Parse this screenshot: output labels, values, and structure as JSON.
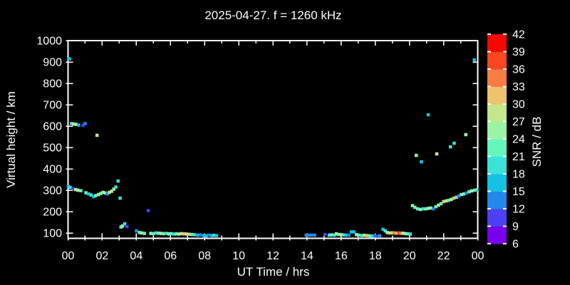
{
  "title": "2025-04-27. f = 1260 kHz",
  "colors": {
    "background": "#000000",
    "text": "#ffffff",
    "axis": "#ffffff"
  },
  "chart_data": {
    "type": "scatter",
    "title": "2025-04-27. f = 1260 kHz",
    "xlabel": "UT Time / hrs",
    "ylabel": "Virtual height / km",
    "colorbar_label": "SNR / dB",
    "x_tick_labels": [
      "00",
      "02",
      "04",
      "06",
      "08",
      "10",
      "12",
      "14",
      "16",
      "18",
      "20",
      "22",
      "00"
    ],
    "x_major_step_hours": 2,
    "x_minor_step_hours": 1,
    "x_range_hours": [
      0,
      24
    ],
    "y_ticks_km": [
      100,
      200,
      300,
      400,
      500,
      600,
      700,
      800,
      900,
      1000
    ],
    "y_range_km": [
      75,
      1000
    ],
    "grid": false,
    "snr_tick_labels": [
      6,
      9,
      12,
      15,
      18,
      21,
      24,
      27,
      30,
      33,
      36,
      39,
      42
    ],
    "snr_colors_low_to_high": [
      "#7900EF",
      "#4B41F2",
      "#2387EC",
      "#15C1E5",
      "#3BE2D7",
      "#64F6BE",
      "#9BF4A6",
      "#C3E78A",
      "#EFC26D",
      "#FA7D44",
      "#FA4621",
      "#F50800"
    ],
    "points_t_h_snr": [
      [
        0.08,
        915,
        16
      ],
      [
        0.2,
        612,
        19
      ],
      [
        0.33,
        610,
        28
      ],
      [
        0.47,
        608,
        25
      ],
      [
        0.62,
        605,
        16
      ],
      [
        0.88,
        603,
        10
      ],
      [
        1.0,
        612,
        13
      ],
      [
        1.7,
        557,
        28
      ],
      [
        0.02,
        318,
        16
      ],
      [
        0.12,
        313,
        19
      ],
      [
        0.3,
        307,
        10
      ],
      [
        0.45,
        303,
        28
      ],
      [
        0.58,
        300,
        25
      ],
      [
        0.75,
        298,
        22
      ],
      [
        1.05,
        288,
        22
      ],
      [
        1.2,
        283,
        16
      ],
      [
        1.35,
        278,
        19
      ],
      [
        1.5,
        270,
        16
      ],
      [
        1.62,
        275,
        22
      ],
      [
        1.78,
        280,
        25
      ],
      [
        1.92,
        285,
        22
      ],
      [
        2.05,
        290,
        28
      ],
      [
        2.18,
        287,
        25
      ],
      [
        2.3,
        283,
        13
      ],
      [
        2.42,
        290,
        28
      ],
      [
        2.55,
        295,
        28
      ],
      [
        2.68,
        305,
        25
      ],
      [
        2.8,
        315,
        19
      ],
      [
        2.93,
        343,
        19
      ],
      [
        3.05,
        263,
        19
      ],
      [
        3.1,
        128,
        22
      ],
      [
        3.2,
        133,
        25
      ],
      [
        3.32,
        143,
        19
      ],
      [
        3.45,
        130,
        10
      ],
      [
        4.0,
        110,
        13
      ],
      [
        4.18,
        102,
        22
      ],
      [
        4.32,
        100,
        25
      ],
      [
        4.48,
        98,
        22
      ],
      [
        4.7,
        205,
        10
      ],
      [
        4.85,
        98,
        25
      ],
      [
        5.0,
        97,
        22
      ],
      [
        5.15,
        100,
        19
      ],
      [
        5.3,
        99,
        22
      ],
      [
        5.45,
        98,
        28
      ],
      [
        5.6,
        97,
        22
      ],
      [
        5.75,
        98,
        19
      ],
      [
        5.9,
        96,
        25
      ],
      [
        6.05,
        97,
        22
      ],
      [
        6.2,
        95,
        19
      ],
      [
        6.35,
        96,
        22
      ],
      [
        6.5,
        95,
        28
      ],
      [
        6.65,
        97,
        25
      ],
      [
        6.8,
        96,
        31
      ],
      [
        6.95,
        95,
        28
      ],
      [
        7.1,
        94,
        31
      ],
      [
        7.25,
        93,
        22
      ],
      [
        7.4,
        92,
        19
      ],
      [
        7.6,
        90,
        16
      ],
      [
        7.75,
        91,
        13
      ],
      [
        7.95,
        88,
        16
      ],
      [
        8.1,
        87,
        16
      ],
      [
        8.25,
        90,
        13
      ],
      [
        8.42,
        88,
        16
      ],
      [
        8.55,
        89,
        19
      ],
      [
        8.7,
        88,
        16
      ],
      [
        13.95,
        90,
        13
      ],
      [
        14.1,
        90,
        13
      ],
      [
        14.28,
        90,
        13
      ],
      [
        14.45,
        90,
        13
      ],
      [
        15.05,
        93,
        10
      ],
      [
        15.3,
        90,
        19
      ],
      [
        15.45,
        91,
        22
      ],
      [
        15.6,
        90,
        19
      ],
      [
        15.72,
        96,
        25
      ],
      [
        15.85,
        93,
        22
      ],
      [
        16.0,
        92,
        28
      ],
      [
        16.15,
        91,
        19
      ],
      [
        16.3,
        90,
        16
      ],
      [
        16.45,
        90,
        13
      ],
      [
        16.6,
        105,
        16
      ],
      [
        16.75,
        105,
        16
      ],
      [
        16.9,
        92,
        25
      ],
      [
        17.05,
        90,
        22
      ],
      [
        17.2,
        88,
        19
      ],
      [
        17.35,
        89,
        28
      ],
      [
        17.5,
        88,
        31
      ],
      [
        17.65,
        87,
        22
      ],
      [
        17.8,
        86,
        19
      ],
      [
        17.95,
        87,
        13
      ],
      [
        18.1,
        85,
        10
      ],
      [
        18.25,
        87,
        13
      ],
      [
        18.45,
        117,
        16
      ],
      [
        18.58,
        110,
        19
      ],
      [
        18.7,
        102,
        25
      ],
      [
        18.85,
        100,
        28
      ],
      [
        19.0,
        101,
        31
      ],
      [
        19.12,
        100,
        34
      ],
      [
        19.25,
        99,
        31
      ],
      [
        19.38,
        100,
        37
      ],
      [
        19.5,
        98,
        34
      ],
      [
        19.62,
        99,
        28
      ],
      [
        19.75,
        97,
        25
      ],
      [
        19.9,
        96,
        22
      ],
      [
        20.05,
        95,
        19
      ],
      [
        20.18,
        228,
        25
      ],
      [
        20.32,
        220,
        22
      ],
      [
        20.48,
        213,
        22
      ],
      [
        20.65,
        210,
        25
      ],
      [
        20.8,
        213,
        19
      ],
      [
        20.95,
        213,
        22
      ],
      [
        21.1,
        215,
        25
      ],
      [
        21.25,
        217,
        25
      ],
      [
        21.4,
        213,
        13
      ],
      [
        21.55,
        223,
        22
      ],
      [
        21.7,
        230,
        25
      ],
      [
        21.85,
        237,
        22
      ],
      [
        22.0,
        247,
        31
      ],
      [
        22.15,
        250,
        25
      ],
      [
        22.3,
        253,
        22
      ],
      [
        22.45,
        257,
        25
      ],
      [
        22.6,
        263,
        31
      ],
      [
        22.75,
        267,
        22
      ],
      [
        22.9,
        273,
        13
      ],
      [
        23.05,
        280,
        25
      ],
      [
        23.2,
        283,
        22
      ],
      [
        23.35,
        287,
        13
      ],
      [
        23.5,
        293,
        22
      ],
      [
        23.65,
        297,
        25
      ],
      [
        23.82,
        300,
        22
      ],
      [
        23.95,
        302,
        19
      ],
      [
        20.4,
        463,
        25
      ],
      [
        20.7,
        433,
        16
      ],
      [
        21.1,
        653,
        16
      ],
      [
        21.6,
        470,
        28
      ],
      [
        22.4,
        503,
        19
      ],
      [
        22.62,
        520,
        19
      ],
      [
        23.3,
        560,
        25
      ],
      [
        23.8,
        910,
        16
      ]
    ]
  }
}
